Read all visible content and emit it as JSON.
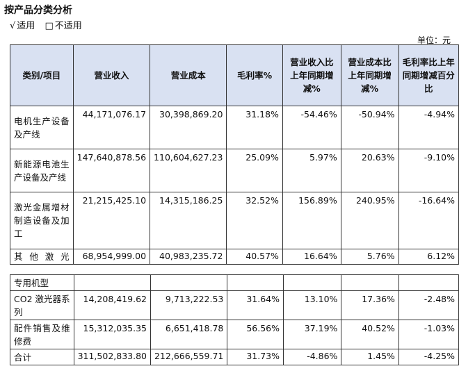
{
  "title": "按产品分类分析",
  "applicable": {
    "checked_mark": "√",
    "checked_label": "适用",
    "unchecked_mark": "□",
    "unchecked_label": "不适用"
  },
  "unit": "单位：元",
  "table": {
    "headers": [
      "类别/项目",
      "营业收入",
      "营业成本",
      "毛利率%",
      "营业收入比上年同期增减%",
      "营业成本比上年同期增减%",
      "毛利率比上年同期增减百分比"
    ],
    "rows": [
      {
        "category": "电机生产设备及产线",
        "revenue": "44,171,076.17",
        "cost": "30,398,869.20",
        "margin": "31.18%",
        "revenue_change": "-54.46%",
        "cost_change": "-50.94%",
        "margin_change": "-4.94%"
      },
      {
        "category": "新能源电池生产设备及产线",
        "revenue": "147,640,878.56",
        "cost": "110,604,627.23",
        "margin": "25.09%",
        "revenue_change": "5.97%",
        "cost_change": "20.63%",
        "margin_change": "-9.10%"
      },
      {
        "category": "激光金属增材制造设备及加工",
        "revenue": "21,215,425.10",
        "cost": "14,315,186.25",
        "margin": "32.52%",
        "revenue_change": "156.89%",
        "cost_change": "240.95%",
        "margin_change": "-16.64%"
      },
      {
        "category": "其他激光",
        "revenue": "68,954,999.00",
        "cost": "40,983,235.72",
        "margin": "40.57%",
        "revenue_change": "16.64%",
        "cost_change": "5.76%",
        "margin_change": "6.12%"
      }
    ]
  },
  "table2": {
    "rows": [
      {
        "category": "专用机型",
        "revenue": "",
        "cost": "",
        "margin": "",
        "revenue_change": "",
        "cost_change": "",
        "margin_change": ""
      },
      {
        "category": "CO2 激光器系列",
        "revenue": "14,208,419.62",
        "cost": "9,713,222.53",
        "margin": "31.64%",
        "revenue_change": "13.10%",
        "cost_change": "17.36%",
        "margin_change": "-2.48%"
      },
      {
        "category": "配件销售及维修费",
        "revenue": "15,312,035.35",
        "cost": "6,651,418.78",
        "margin": "56.56%",
        "revenue_change": "37.19%",
        "cost_change": "40.52%",
        "margin_change": "-1.03%"
      },
      {
        "category": "合计",
        "revenue": "311,502,833.80",
        "cost": "212,666,559.71",
        "margin": "31.73%",
        "revenue_change": "-4.86%",
        "cost_change": "1.45%",
        "margin_change": "-4.25%"
      }
    ]
  }
}
